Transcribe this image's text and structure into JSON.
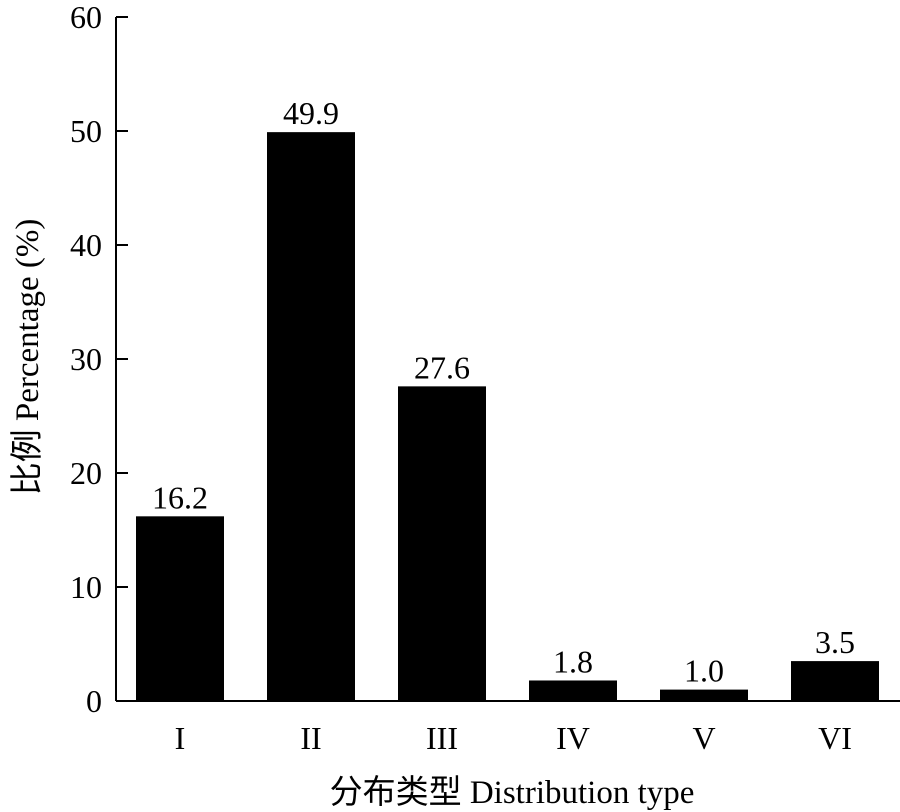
{
  "chart_data": {
    "type": "bar",
    "title": "",
    "xlabel": "分布类型 Distribution type",
    "ylabel": "比例 Percentage (%)",
    "categories": [
      "I",
      "II",
      "III",
      "IV",
      "V",
      "VI"
    ],
    "values": [
      16.2,
      49.9,
      27.6,
      1.8,
      1.0,
      3.5
    ],
    "data_labels": [
      "16.2",
      "49.9",
      "27.6",
      "1.8",
      "1.0",
      "3.5"
    ],
    "ylim": [
      0,
      60
    ],
    "yticks": [
      0,
      10,
      20,
      30,
      40,
      50,
      60
    ],
    "bar_color": "#000000",
    "grid": false,
    "legend": "none"
  }
}
